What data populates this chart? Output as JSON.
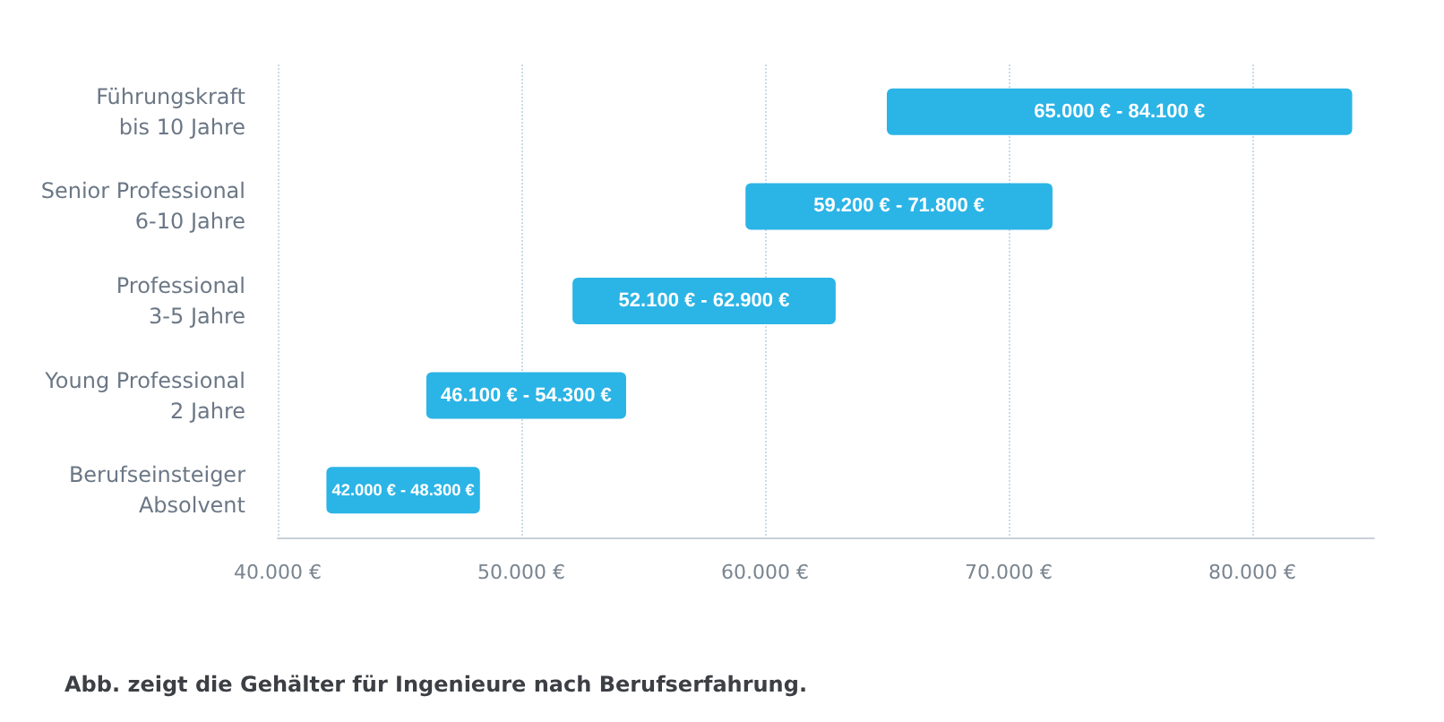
{
  "chart_data": {
    "type": "bar",
    "orientation": "horizontal",
    "categories": [
      "Führungskraft\nbis 10 Jahre",
      "Senior Professional\n6-10 Jahre",
      "Professional\n3-5 Jahre",
      "Young Professional\n2 Jahre",
      "Berufseinsteiger\nAbsolvent"
    ],
    "base": [
      65000,
      59200,
      52100,
      46100,
      42000
    ],
    "values": [
      19100,
      12600,
      10800,
      8200,
      6300
    ],
    "color": "#2bb4e6",
    "xlim": [
      40000,
      85000
    ],
    "xticks": [
      {
        "value": 40000,
        "label": "40.000 €"
      },
      {
        "value": 50000,
        "label": "50.000 €"
      },
      {
        "value": 60000,
        "label": "60.000 €"
      },
      {
        "value": 70000,
        "label": "70.000 €"
      },
      {
        "value": 80000,
        "label": "80.000 €"
      }
    ],
    "grid": "x",
    "annotations": [
      "65.000 € - 84.100 €",
      "59.200 € - 71.800 €",
      "52.100 € - 62.900 €",
      "46.100 € - 54.300 €",
      "42.000 € - 48.300 €",
      "Abb. zeigt die Gehälter für Ingenieure nach Berufserfahrung."
    ]
  }
}
